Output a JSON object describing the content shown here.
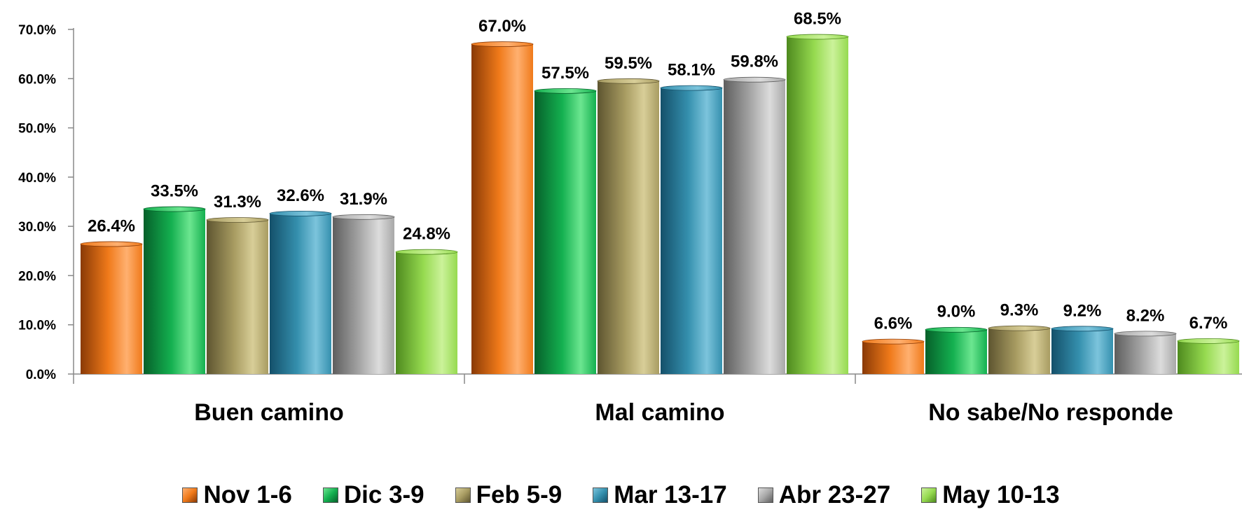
{
  "chart_data": {
    "type": "bar",
    "categories": [
      "Buen camino",
      "Mal camino",
      "No sabe/No responde"
    ],
    "series": [
      {
        "name": "Nov 1-6",
        "color": "#F07A1A",
        "dark": "#8A3A06",
        "light": "#FFB070",
        "values": [
          26.4,
          67.0,
          6.6
        ],
        "labels": [
          "26.4%",
          "67.0%",
          "6.6%"
        ]
      },
      {
        "name": "Dic 3-9",
        "color": "#14B050",
        "dark": "#06602A",
        "light": "#6CE690",
        "values": [
          33.5,
          57.5,
          9.0
        ],
        "labels": [
          "33.5%",
          "57.5%",
          "9.0%"
        ]
      },
      {
        "name": "Feb 5-9",
        "color": "#A89C62",
        "dark": "#5E5530",
        "light": "#D8CE98",
        "values": [
          31.3,
          59.5,
          9.3
        ],
        "labels": [
          "31.3%",
          "59.5%",
          "9.3%"
        ]
      },
      {
        "name": "Mar 13-17",
        "color": "#3590AE",
        "dark": "#14506A",
        "light": "#7CC4DC",
        "values": [
          32.6,
          58.1,
          9.2
        ],
        "labels": [
          "32.6%",
          "58.1%",
          "9.2%"
        ]
      },
      {
        "name": "Abr 23-27",
        "color": "#A8A8A8",
        "dark": "#5E5E5E",
        "light": "#DCDCDC",
        "values": [
          31.9,
          59.8,
          8.2
        ],
        "labels": [
          "31.9%",
          "59.8%",
          "8.2%"
        ]
      },
      {
        "name": "May 10-13",
        "color": "#96DA50",
        "dark": "#4E8A1E",
        "light": "#CBF29A",
        "values": [
          24.8,
          68.5,
          6.7
        ],
        "labels": [
          "24.8%",
          "68.5%",
          "6.7%"
        ]
      }
    ],
    "yticks": [
      "0.0%",
      "10.0%",
      "20.0%",
      "30.0%",
      "40.0%",
      "50.0%",
      "60.0%",
      "70.0%"
    ],
    "ylim": [
      0,
      70
    ],
    "ystep": 10,
    "title": "",
    "xlabel": "",
    "ylabel": "",
    "grid": false,
    "legend_position": "bottom"
  }
}
